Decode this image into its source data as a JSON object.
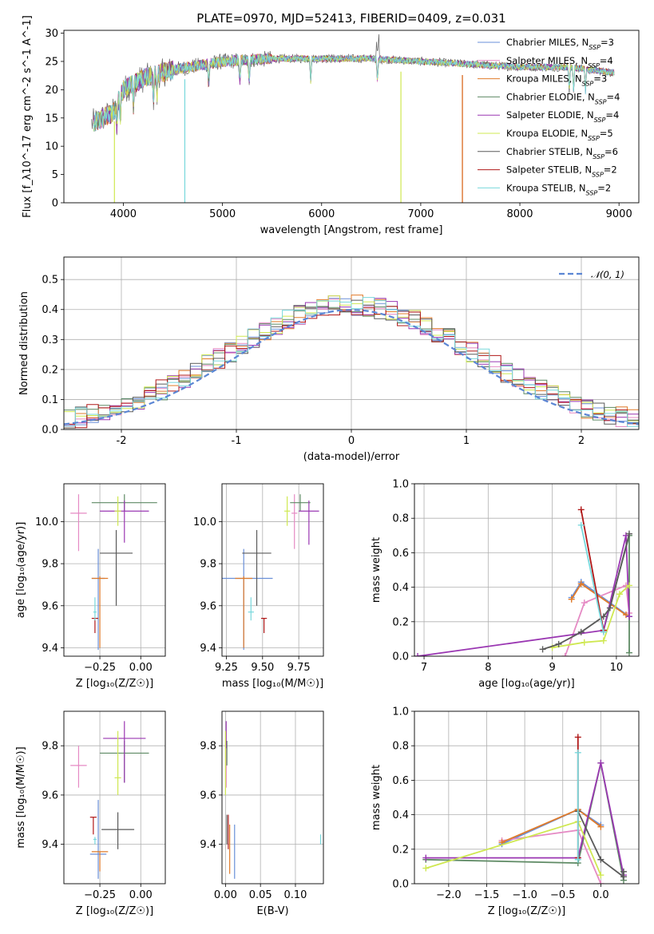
{
  "colors": {
    "Chabrier MILES": "#6a8fd8",
    "Salpeter MILES": "#e58ac4",
    "Kroupa MILES": "#e07b2a",
    "Chabrier ELODIE": "#5e8a64",
    "Salpeter ELODIE": "#9a37b2",
    "Kroupa ELODIE": "#cfe851",
    "Chabrier STELIB": "#5a5a5a",
    "Salpeter STELIB": "#b01818",
    "Kroupa STELIB": "#78d8dc",
    "normal_curve": "#5b86d4"
  },
  "chart_data": [
    {
      "id": "spectrum",
      "type": "line",
      "title": "PLATE=0970, MJD=52413, FIBERID=0409, z=0.031",
      "xlabel": "wavelength [Angstrom, rest frame]",
      "ylabel": "Flux [f_λ10^-17 erg cm^-2 s^-1 A^-1]",
      "xlim": [
        3400,
        9200
      ],
      "ylim": [
        0,
        30.5
      ],
      "xticks": [
        4000,
        5000,
        6000,
        7000,
        8000,
        9000
      ],
      "yticks": [
        0,
        5,
        10,
        15,
        20,
        25,
        30
      ],
      "grid": false,
      "legend_position": "top-right",
      "legend": [
        {
          "label": "Chabrier MILES, N_SSP=3",
          "base": "Chabrier MILES, N",
          "sub": "SSP",
          "tail": "=3",
          "color_key": "Chabrier MILES"
        },
        {
          "label": "Salpeter MILES, N_SSP=4",
          "base": "Salpeter MILES, N",
          "sub": "SSP",
          "tail": "=4",
          "color_key": "Salpeter MILES"
        },
        {
          "label": "Kroupa MILES, N_SSP=3",
          "base": "Kroupa MILES, N",
          "sub": "SSP",
          "tail": "=3",
          "color_key": "Kroupa MILES"
        },
        {
          "label": "Chabrier ELODIE, N_SSP=4",
          "base": "Chabrier ELODIE, N",
          "sub": "SSP",
          "tail": "=4",
          "color_key": "Chabrier ELODIE"
        },
        {
          "label": "Salpeter ELODIE, N_SSP=4",
          "base": "Salpeter ELODIE, N",
          "sub": "SSP",
          "tail": "=4",
          "color_key": "Salpeter ELODIE"
        },
        {
          "label": "Kroupa ELODIE, N_SSP=5",
          "base": "Kroupa ELODIE, N",
          "sub": "SSP",
          "tail": "=5",
          "color_key": "Kroupa ELODIE"
        },
        {
          "label": "Chabrier STELIB, N_SSP=6",
          "base": "Chabrier STELIB, N",
          "sub": "SSP",
          "tail": "=6",
          "color_key": "Chabrier STELIB"
        },
        {
          "label": "Salpeter STELIB, N_SSP=2",
          "base": "Salpeter STELIB, N",
          "sub": "SSP",
          "tail": "=2",
          "color_key": "Salpeter STELIB"
        },
        {
          "label": "Kroupa STELIB, N_SSP=2",
          "base": "Kroupa STELIB, N",
          "sub": "SSP",
          "tail": "=2",
          "color_key": "Kroupa STELIB"
        }
      ],
      "continuum": [
        [
          3680,
          14
        ],
        [
          3900,
          16
        ],
        [
          4000,
          20
        ],
        [
          4200,
          22
        ],
        [
          4500,
          23.5
        ],
        [
          5000,
          25
        ],
        [
          5500,
          25.5
        ],
        [
          6000,
          25.5
        ],
        [
          6500,
          25.5
        ],
        [
          7000,
          25
        ],
        [
          7500,
          24.5
        ],
        [
          8000,
          24
        ],
        [
          8500,
          24
        ],
        [
          8950,
          23
        ]
      ],
      "drops": [
        {
          "x": 3910,
          "to": 0,
          "color_key": "Kroupa ELODIE"
        },
        {
          "x": 4620,
          "to": 0,
          "color_key": "Kroupa STELIB"
        },
        {
          "x": 6800,
          "to": 0,
          "color_key": "Kroupa ELODIE"
        },
        {
          "x": 7420,
          "to": 0,
          "color_key": "Salpeter STELIB"
        },
        {
          "x": 7420,
          "to": 0,
          "color_key": "Kroupa MILES"
        }
      ]
    },
    {
      "id": "residuals",
      "type": "line",
      "xlabel": "(data-model)/error",
      "ylabel": "Normed distribution",
      "xlim": [
        -2.5,
        2.5
      ],
      "ylim": [
        0,
        0.575
      ],
      "xticks": [
        -2,
        -1,
        0,
        1,
        2
      ],
      "yticks": [
        0.0,
        0.1,
        0.2,
        0.3,
        0.4,
        0.5
      ],
      "grid": true,
      "legend_position": "top-right",
      "legend_label": "𝒩(0, 1)",
      "normal_mean": 0,
      "normal_sigma": 1,
      "bin_width": 0.1,
      "series_order": [
        "Chabrier MILES",
        "Salpeter MILES",
        "Kroupa MILES",
        "Chabrier ELODIE",
        "Salpeter ELODIE",
        "Kroupa ELODIE",
        "Chabrier STELIB",
        "Salpeter STELIB",
        "Kroupa STELIB"
      ]
    },
    {
      "id": "age_vs_Z",
      "type": "scatter",
      "xlabel": "Z [log₁₀(Z/Z☉)]",
      "ylabel": "age  [log₁₀(age/yr)]",
      "xlim": [
        -0.47,
        0.15
      ],
      "ylim": [
        9.36,
        10.18
      ],
      "xticks": [
        -0.25,
        0.0
      ],
      "xticklabels": [
        "−0.25",
        "0.00"
      ],
      "yticks": [
        9.4,
        9.6,
        9.8,
        10.0
      ],
      "grid": true,
      "points": [
        {
          "s": "Chabrier MILES",
          "x": -0.26,
          "y": 9.73,
          "xerr": 0.04,
          "ylo": 9.39,
          "yhi": 9.87
        },
        {
          "s": "Salpeter MILES",
          "x": -0.38,
          "y": 10.04,
          "xerr": 0.05,
          "ylo": 9.86,
          "yhi": 10.13
        },
        {
          "s": "Kroupa MILES",
          "x": -0.25,
          "y": 9.73,
          "xerr": 0.05,
          "ylo": 9.4,
          "yhi": 9.74
        },
        {
          "s": "Chabrier ELODIE",
          "x": -0.1,
          "y": 10.09,
          "xerr": 0.2,
          "ylo": 10.05,
          "yhi": 10.13
        },
        {
          "s": "Salpeter ELODIE",
          "x": -0.1,
          "y": 10.05,
          "xerr": 0.15,
          "ylo": 9.9,
          "yhi": 10.1
        },
        {
          "s": "Kroupa ELODIE",
          "x": -0.14,
          "y": 10.05,
          "xerr": 0.02,
          "ylo": 9.98,
          "yhi": 10.12
        },
        {
          "s": "Chabrier STELIB",
          "x": -0.15,
          "y": 9.85,
          "xerr": 0.1,
          "ylo": 9.6,
          "yhi": 9.96
        },
        {
          "s": "Salpeter STELIB",
          "x": -0.28,
          "y": 9.54,
          "xerr": 0.02,
          "ylo": 9.47,
          "yhi": 9.54
        },
        {
          "s": "Kroupa STELIB",
          "x": -0.28,
          "y": 9.57,
          "xerr": 0.01,
          "ylo": 9.53,
          "yhi": 9.64
        }
      ]
    },
    {
      "id": "age_vs_mass",
      "type": "scatter",
      "xlabel": "mass [log₁₀(M/M☉)]",
      "xlim": [
        9.22,
        9.92
      ],
      "ylim": [
        9.36,
        10.18
      ],
      "xticks": [
        9.25,
        9.5,
        9.75
      ],
      "xticklabels": [
        "9.25",
        "9.50",
        "9.75"
      ],
      "yticks": [
        9.4,
        9.6,
        9.8,
        10.0
      ],
      "grid": true,
      "points": [
        {
          "s": "Chabrier MILES",
          "x": 9.37,
          "y": 9.73,
          "xerr": 0.2,
          "ylo": 9.39,
          "yhi": 9.87
        },
        {
          "s": "Salpeter MILES",
          "x": 9.72,
          "y": 10.04,
          "xerr": 0.02,
          "ylo": 9.87,
          "yhi": 10.13
        },
        {
          "s": "Kroupa MILES",
          "x": 9.37,
          "y": 9.73,
          "xerr": 0.06,
          "ylo": 9.4,
          "yhi": 9.74
        },
        {
          "s": "Chabrier ELODIE",
          "x": 9.76,
          "y": 10.09,
          "xerr": 0.07,
          "ylo": 10.05,
          "yhi": 10.13
        },
        {
          "s": "Salpeter ELODIE",
          "x": 9.82,
          "y": 10.05,
          "xerr": 0.07,
          "ylo": 9.89,
          "yhi": 10.1
        },
        {
          "s": "Kroupa ELODIE",
          "x": 9.67,
          "y": 10.05,
          "xerr": 0.02,
          "ylo": 9.98,
          "yhi": 10.12
        },
        {
          "s": "Chabrier STELIB",
          "x": 9.46,
          "y": 9.85,
          "xerr": 0.1,
          "ylo": 9.6,
          "yhi": 9.96
        },
        {
          "s": "Salpeter STELIB",
          "x": 9.51,
          "y": 9.54,
          "xerr": 0.02,
          "ylo": 9.47,
          "yhi": 9.54
        },
        {
          "s": "Kroupa STELIB",
          "x": 9.42,
          "y": 9.57,
          "xerr": 0.02,
          "ylo": 9.53,
          "yhi": 9.64
        }
      ]
    },
    {
      "id": "weight_vs_age",
      "type": "line",
      "xlabel": "age  [log₁₀(age/yr)]",
      "ylabel": "mass weight",
      "xlim": [
        6.85,
        10.35
      ],
      "ylim": [
        0,
        1.0
      ],
      "xticks": [
        7,
        8,
        9,
        10
      ],
      "yticks": [
        0.0,
        0.2,
        0.4,
        0.6,
        0.8,
        1.0
      ],
      "grid": true,
      "series": [
        {
          "name": "Chabrier MILES",
          "x": [
            9.3,
            9.45,
            10.2
          ],
          "y": [
            0.34,
            0.43,
            0.23
          ]
        },
        {
          "name": "Salpeter MILES",
          "x": [
            9.2,
            9.5,
            10.15,
            10.2
          ],
          "y": [
            0.0,
            0.31,
            0.41,
            0.25
          ]
        },
        {
          "name": "Kroupa MILES",
          "x": [
            9.3,
            9.45,
            10.15
          ],
          "y": [
            0.33,
            0.42,
            0.24
          ]
        },
        {
          "name": "Chabrier ELODIE",
          "x": [
            9.8,
            10.2,
            10.2
          ],
          "y": [
            0.15,
            0.7,
            0.02
          ]
        },
        {
          "name": "Salpeter ELODIE",
          "x": [
            6.9,
            9.8,
            10.15,
            10.2
          ],
          "y": [
            0.0,
            0.15,
            0.7,
            0.23
          ]
        },
        {
          "name": "Kroupa ELODIE",
          "x": [
            9.0,
            9.5,
            9.8,
            10.05,
            10.2
          ],
          "y": [
            0.05,
            0.08,
            0.09,
            0.36,
            0.41
          ]
        },
        {
          "name": "Chabrier STELIB",
          "x": [
            8.85,
            9.1,
            9.45,
            9.8,
            9.9,
            10.2
          ],
          "y": [
            0.04,
            0.07,
            0.14,
            0.23,
            0.28,
            0.71
          ]
        },
        {
          "name": "Salpeter STELIB",
          "x": [
            9.45,
            9.8
          ],
          "y": [
            0.85,
            0.15
          ]
        },
        {
          "name": "Kroupa STELIB",
          "x": [
            9.45,
            9.8
          ],
          "y": [
            0.76,
            0.14
          ]
        }
      ]
    },
    {
      "id": "mass_vs_Z",
      "type": "scatter",
      "xlabel": "Z [log₁₀(Z/Z☉)]",
      "ylabel": "mass [log₁₀(M/M☉)]",
      "xlim": [
        -0.47,
        0.15
      ],
      "ylim": [
        9.24,
        9.94
      ],
      "xticks": [
        -0.25,
        0.0
      ],
      "xticklabels": [
        "−0.25",
        "0.00"
      ],
      "yticks": [
        9.4,
        9.6,
        9.8
      ],
      "grid": true,
      "points": [
        {
          "s": "Chabrier MILES",
          "x": -0.26,
          "y": 9.36,
          "xerr": 0.05,
          "ylo": 9.26,
          "yhi": 9.58
        },
        {
          "s": "Salpeter MILES",
          "x": -0.38,
          "y": 9.72,
          "xerr": 0.05,
          "ylo": 9.63,
          "yhi": 9.8
        },
        {
          "s": "Kroupa MILES",
          "x": -0.25,
          "y": 9.37,
          "xerr": 0.05,
          "ylo": 9.29,
          "yhi": 9.37
        },
        {
          "s": "Chabrier ELODIE",
          "x": -0.1,
          "y": 9.77,
          "xerr": 0.15,
          "ylo": 9.65,
          "yhi": 9.82
        },
        {
          "s": "Salpeter ELODIE",
          "x": -0.1,
          "y": 9.83,
          "xerr": 0.13,
          "ylo": 9.65,
          "yhi": 9.9
        },
        {
          "s": "Kroupa ELODIE",
          "x": -0.14,
          "y": 9.67,
          "xerr": 0.02,
          "ylo": 9.6,
          "yhi": 9.86
        },
        {
          "s": "Chabrier STELIB",
          "x": -0.14,
          "y": 9.46,
          "xerr": 0.1,
          "ylo": 9.38,
          "yhi": 9.53
        },
        {
          "s": "Salpeter STELIB",
          "x": -0.29,
          "y": 9.51,
          "xerr": 0.02,
          "ylo": 9.44,
          "yhi": 9.51
        },
        {
          "s": "Kroupa STELIB",
          "x": -0.28,
          "y": 9.42,
          "xerr": 0.01,
          "ylo": 9.4,
          "yhi": 9.43
        }
      ]
    },
    {
      "id": "mass_vs_ebv",
      "type": "scatter",
      "xlabel": "E(B-V)",
      "xlim": [
        -0.005,
        0.14
      ],
      "ylim": [
        9.24,
        9.94
      ],
      "xticks": [
        0.0,
        0.05,
        0.1
      ],
      "xticklabels": [
        "0.00",
        "0.05",
        "0.10"
      ],
      "yticks": [
        9.4,
        9.6,
        9.8
      ],
      "grid": true,
      "points": [
        {
          "s": "Chabrier MILES",
          "x": 0.013,
          "y": 9.37,
          "xerr": 0,
          "ylo": 9.26,
          "yhi": 9.48
        },
        {
          "s": "Salpeter MILES",
          "x": 0.001,
          "y": 9.72,
          "xerr": 0,
          "ylo": 9.63,
          "yhi": 9.8
        },
        {
          "s": "Kroupa MILES",
          "x": 0.006,
          "y": 9.37,
          "xerr": 0,
          "ylo": 9.28,
          "yhi": 9.48
        },
        {
          "s": "Chabrier ELODIE",
          "x": 0.002,
          "y": 9.77,
          "xerr": 0,
          "ylo": 9.72,
          "yhi": 9.82
        },
        {
          "s": "Salpeter ELODIE",
          "x": 0.001,
          "y": 9.83,
          "xerr": 0,
          "ylo": 9.79,
          "yhi": 9.9
        },
        {
          "s": "Kroupa ELODIE",
          "x": 0.0,
          "y": 9.67,
          "xerr": 0,
          "ylo": 9.6,
          "yhi": 9.86
        },
        {
          "s": "Chabrier STELIB",
          "x": 0.002,
          "y": 9.46,
          "xerr": 0,
          "ylo": 9.4,
          "yhi": 9.52
        },
        {
          "s": "Salpeter STELIB",
          "x": 0.004,
          "y": 9.45,
          "xerr": 0,
          "ylo": 9.38,
          "yhi": 9.52
        },
        {
          "s": "Kroupa STELIB",
          "x": 0.136,
          "y": 9.42,
          "xerr": 0,
          "ylo": 9.4,
          "yhi": 9.44
        }
      ]
    },
    {
      "id": "weight_vs_Z",
      "type": "line",
      "xlabel": "Z [log₁₀(Z/Z☉)]",
      "ylabel": "mass weight",
      "xlim": [
        -2.45,
        0.5
      ],
      "ylim": [
        0,
        1.0
      ],
      "xticks": [
        -2.0,
        -1.5,
        -1.0,
        -0.5,
        0.0
      ],
      "xticklabels": [
        "−2.0",
        "−1.5",
        "−1.0",
        "−0.5",
        "0.0"
      ],
      "yticks": [
        0.0,
        0.2,
        0.4,
        0.6,
        0.8,
        1.0
      ],
      "grid": true,
      "series": [
        {
          "name": "Chabrier MILES",
          "x": [
            -1.3,
            -0.3,
            0.0
          ],
          "y": [
            0.23,
            0.43,
            0.34
          ]
        },
        {
          "name": "Salpeter MILES",
          "x": [
            -1.3,
            -0.3,
            0.0
          ],
          "y": [
            0.25,
            0.31,
            0.0
          ]
        },
        {
          "name": "Kroupa MILES",
          "x": [
            -1.3,
            -0.3,
            0.0
          ],
          "y": [
            0.24,
            0.43,
            0.33
          ]
        },
        {
          "name": "Chabrier ELODIE",
          "x": [
            -2.3,
            -0.3,
            0.0,
            0.3
          ],
          "y": [
            0.14,
            0.12,
            0.7,
            0.02
          ]
        },
        {
          "name": "Salpeter ELODIE",
          "x": [
            -2.3,
            -0.3,
            0.0,
            0.3
          ],
          "y": [
            0.15,
            0.15,
            0.7,
            0.05
          ]
        },
        {
          "name": "Kroupa ELODIE",
          "x": [
            -2.3,
            -0.3,
            0.0
          ],
          "y": [
            0.09,
            0.36,
            0.05
          ]
        },
        {
          "name": "Chabrier STELIB",
          "x": [
            -0.3,
            0.0,
            0.3,
            0.3
          ],
          "y": [
            0.42,
            0.14,
            0.04,
            0.07
          ]
        },
        {
          "name": "Salpeter STELIB",
          "x": [
            -0.3,
            -0.3
          ],
          "y": [
            0.85,
            0.15
          ]
        },
        {
          "name": "Kroupa STELIB",
          "x": [
            -0.3,
            -0.3
          ],
          "y": [
            0.76,
            0.14
          ]
        }
      ]
    }
  ]
}
